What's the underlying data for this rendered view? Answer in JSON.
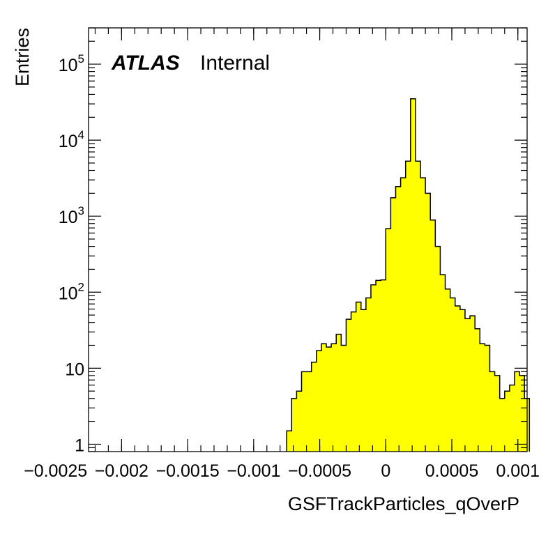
{
  "chart_data": {
    "type": "bar",
    "subtype": "histogram",
    "title": "",
    "xlabel": "GSFTrackParticles_qOverP",
    "ylabel": "Entries",
    "label": {
      "bold": "ATLAS",
      "suffix": "Internal"
    },
    "xlim": [
      -0.00225,
      0.00107
    ],
    "ylim": [
      0.8,
      300000
    ],
    "yscale": "log",
    "x_ticks": [
      {
        "value": -0.0025,
        "label": "−0.0025"
      },
      {
        "value": -0.002,
        "label": "−0.002"
      },
      {
        "value": -0.0015,
        "label": "−0.0015"
      },
      {
        "value": -0.001,
        "label": "−0.001"
      },
      {
        "value": -0.0005,
        "label": "−0.0005"
      },
      {
        "value": 0,
        "label": "0"
      },
      {
        "value": 0.0005,
        "label": "0.0005"
      },
      {
        "value": 0.001,
        "label": "0.001"
      }
    ],
    "y_ticks": [
      {
        "value": 1,
        "base": "1",
        "exp": ""
      },
      {
        "value": 10,
        "base": "10",
        "exp": ""
      },
      {
        "value": 100,
        "base": "10",
        "exp": "2"
      },
      {
        "value": 1000,
        "base": "10",
        "exp": "3"
      },
      {
        "value": 10000,
        "base": "10",
        "exp": "4"
      },
      {
        "value": 100000,
        "base": "10",
        "exp": "5"
      }
    ],
    "bin_width": 3.75e-05,
    "fill_color": "#ffff00",
    "line_color": "#000000",
    "bins": [
      {
        "x_low": -0.00075,
        "value": 1.5
      },
      {
        "x_low": -0.0007125,
        "value": 4.0
      },
      {
        "x_low": -0.000675,
        "value": 5.0
      },
      {
        "x_low": -0.0006375,
        "value": 9.0
      },
      {
        "x_low": -0.0006,
        "value": 9.0
      },
      {
        "x_low": -0.0005625,
        "value": 12.0
      },
      {
        "x_low": -0.000525,
        "value": 17.0
      },
      {
        "x_low": -0.0004875,
        "value": 21.0
      },
      {
        "x_low": -0.00045,
        "value": 19.0
      },
      {
        "x_low": -0.0004125,
        "value": 21.0
      },
      {
        "x_low": -0.000375,
        "value": 28.0
      },
      {
        "x_low": -0.0003375,
        "value": 20.0
      },
      {
        "x_low": -0.0003,
        "value": 44.0
      },
      {
        "x_low": -0.0002625,
        "value": 55.0
      },
      {
        "x_low": -0.000225,
        "value": 74.0
      },
      {
        "x_low": -0.0001875,
        "value": 59.0
      },
      {
        "x_low": -0.00015,
        "value": 84.0
      },
      {
        "x_low": -0.0001125,
        "value": 125.0
      },
      {
        "x_low": -7.5e-05,
        "value": 143.0
      },
      {
        "x_low": -3.75e-05,
        "value": 145.0
      },
      {
        "x_low": 0.0,
        "value": 685.0
      },
      {
        "x_low": 3.75e-05,
        "value": 1750.0
      },
      {
        "x_low": 7.5e-05,
        "value": 2450.0
      },
      {
        "x_low": 0.0001125,
        "value": 3200.0
      },
      {
        "x_low": 0.00015,
        "value": 5300.0
      },
      {
        "x_low": 0.0001875,
        "value": 35000.0
      },
      {
        "x_low": 0.000225,
        "value": 5300.0
      },
      {
        "x_low": 0.0002625,
        "value": 3200.0
      },
      {
        "x_low": 0.0003,
        "value": 2000.0
      },
      {
        "x_low": 0.0003375,
        "value": 890.0
      },
      {
        "x_low": 0.000375,
        "value": 400.0
      },
      {
        "x_low": 0.0004125,
        "value": 170.0
      },
      {
        "x_low": 0.00045,
        "value": 110.0
      },
      {
        "x_low": 0.0004875,
        "value": 84.0
      },
      {
        "x_low": 0.000525,
        "value": 66.0
      },
      {
        "x_low": 0.0005625,
        "value": 59.0
      },
      {
        "x_low": 0.0006,
        "value": 45.0
      },
      {
        "x_low": 0.0006375,
        "value": 49.0
      },
      {
        "x_low": 0.000675,
        "value": 33.0
      },
      {
        "x_low": 0.0007125,
        "value": 21.0
      },
      {
        "x_low": 0.00075,
        "value": 20.0
      },
      {
        "x_low": 0.0007875,
        "value": 9.0
      },
      {
        "x_low": 0.000825,
        "value": 8.0
      },
      {
        "x_low": 0.0008625,
        "value": 4.0
      },
      {
        "x_low": 0.0009,
        "value": 5.0
      },
      {
        "x_low": 0.0009375,
        "value": 6.0
      },
      {
        "x_low": 0.000975,
        "value": 9.0
      },
      {
        "x_low": 0.0010125,
        "value": 8.0
      },
      {
        "x_low": 0.00105,
        "value": 4.0
      }
    ]
  }
}
